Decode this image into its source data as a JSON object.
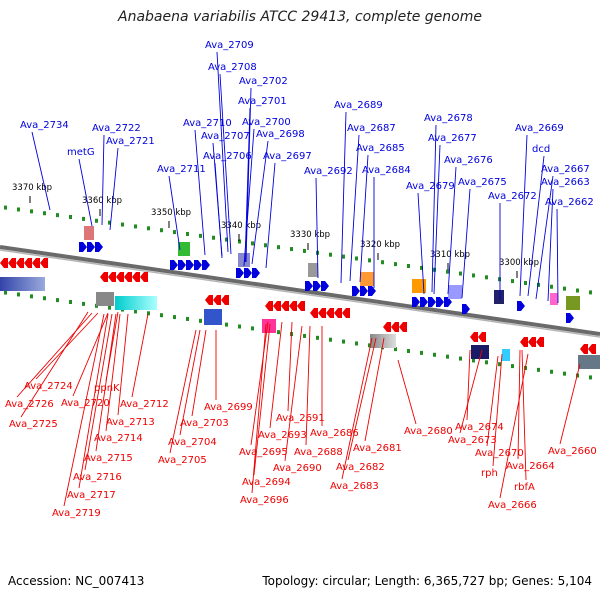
{
  "title": "Anabaena variabilis ATCC 29413, complete genome",
  "footer": {
    "accession": "Accession: NC_007413",
    "topology": "Topology: circular; Length: 6,365,727 bp; Genes: 5,104"
  },
  "colors": {
    "forward": "#0000dd",
    "reverse": "#ee0000",
    "ruler": "#777777",
    "tick": "#228b22"
  },
  "scale_ticks": [
    "3370 kbp",
    "3360 kbp",
    "3350 kbp",
    "3340 kbp",
    "3330 kbp",
    "3320 kbp",
    "3310 kbp",
    "3300 kbp"
  ],
  "forward_labels": [
    "Ava_2734",
    "Ava_2722",
    "metG",
    "Ava_2721",
    "Ava_2711",
    "Ava_2710",
    "Ava_2709",
    "Ava_2708",
    "Ava_2707",
    "Ava_2706",
    "Ava_2702",
    "Ava_2701",
    "Ava_2700",
    "Ava_2698",
    "Ava_2697",
    "Ava_2692",
    "Ava_2689",
    "Ava_2687",
    "Ava_2685",
    "Ava_2684",
    "Ava_2679",
    "Ava_2678",
    "Ava_2677",
    "Ava_2676",
    "Ava_2675",
    "Ava_2672",
    "Ava_2669",
    "dcd",
    "Ava_2667",
    "Ava_2663",
    "Ava_2662"
  ],
  "reverse_labels": [
    "Ava_2724",
    "Ava_2726",
    "Ava_2725",
    "Ava_2720",
    "ppnK",
    "Ava_2712",
    "Ava_2713",
    "Ava_2714",
    "Ava_2715",
    "Ava_2716",
    "Ava_2717",
    "Ava_2719",
    "Ava_2699",
    "Ava_2703",
    "Ava_2704",
    "Ava_2705",
    "Ava_2691",
    "Ava_2693",
    "Ava_2695",
    "Ava_2694",
    "Ava_2696",
    "Ava_2686",
    "Ava_2688",
    "Ava_2690",
    "Ava_2680",
    "Ava_2681",
    "Ava_2682",
    "Ava_2683",
    "Ava_2674",
    "Ava_2673",
    "Ava_2670",
    "rph",
    "Ava_2664",
    "rbfA",
    "Ava_2666",
    "Ava_2660"
  ]
}
